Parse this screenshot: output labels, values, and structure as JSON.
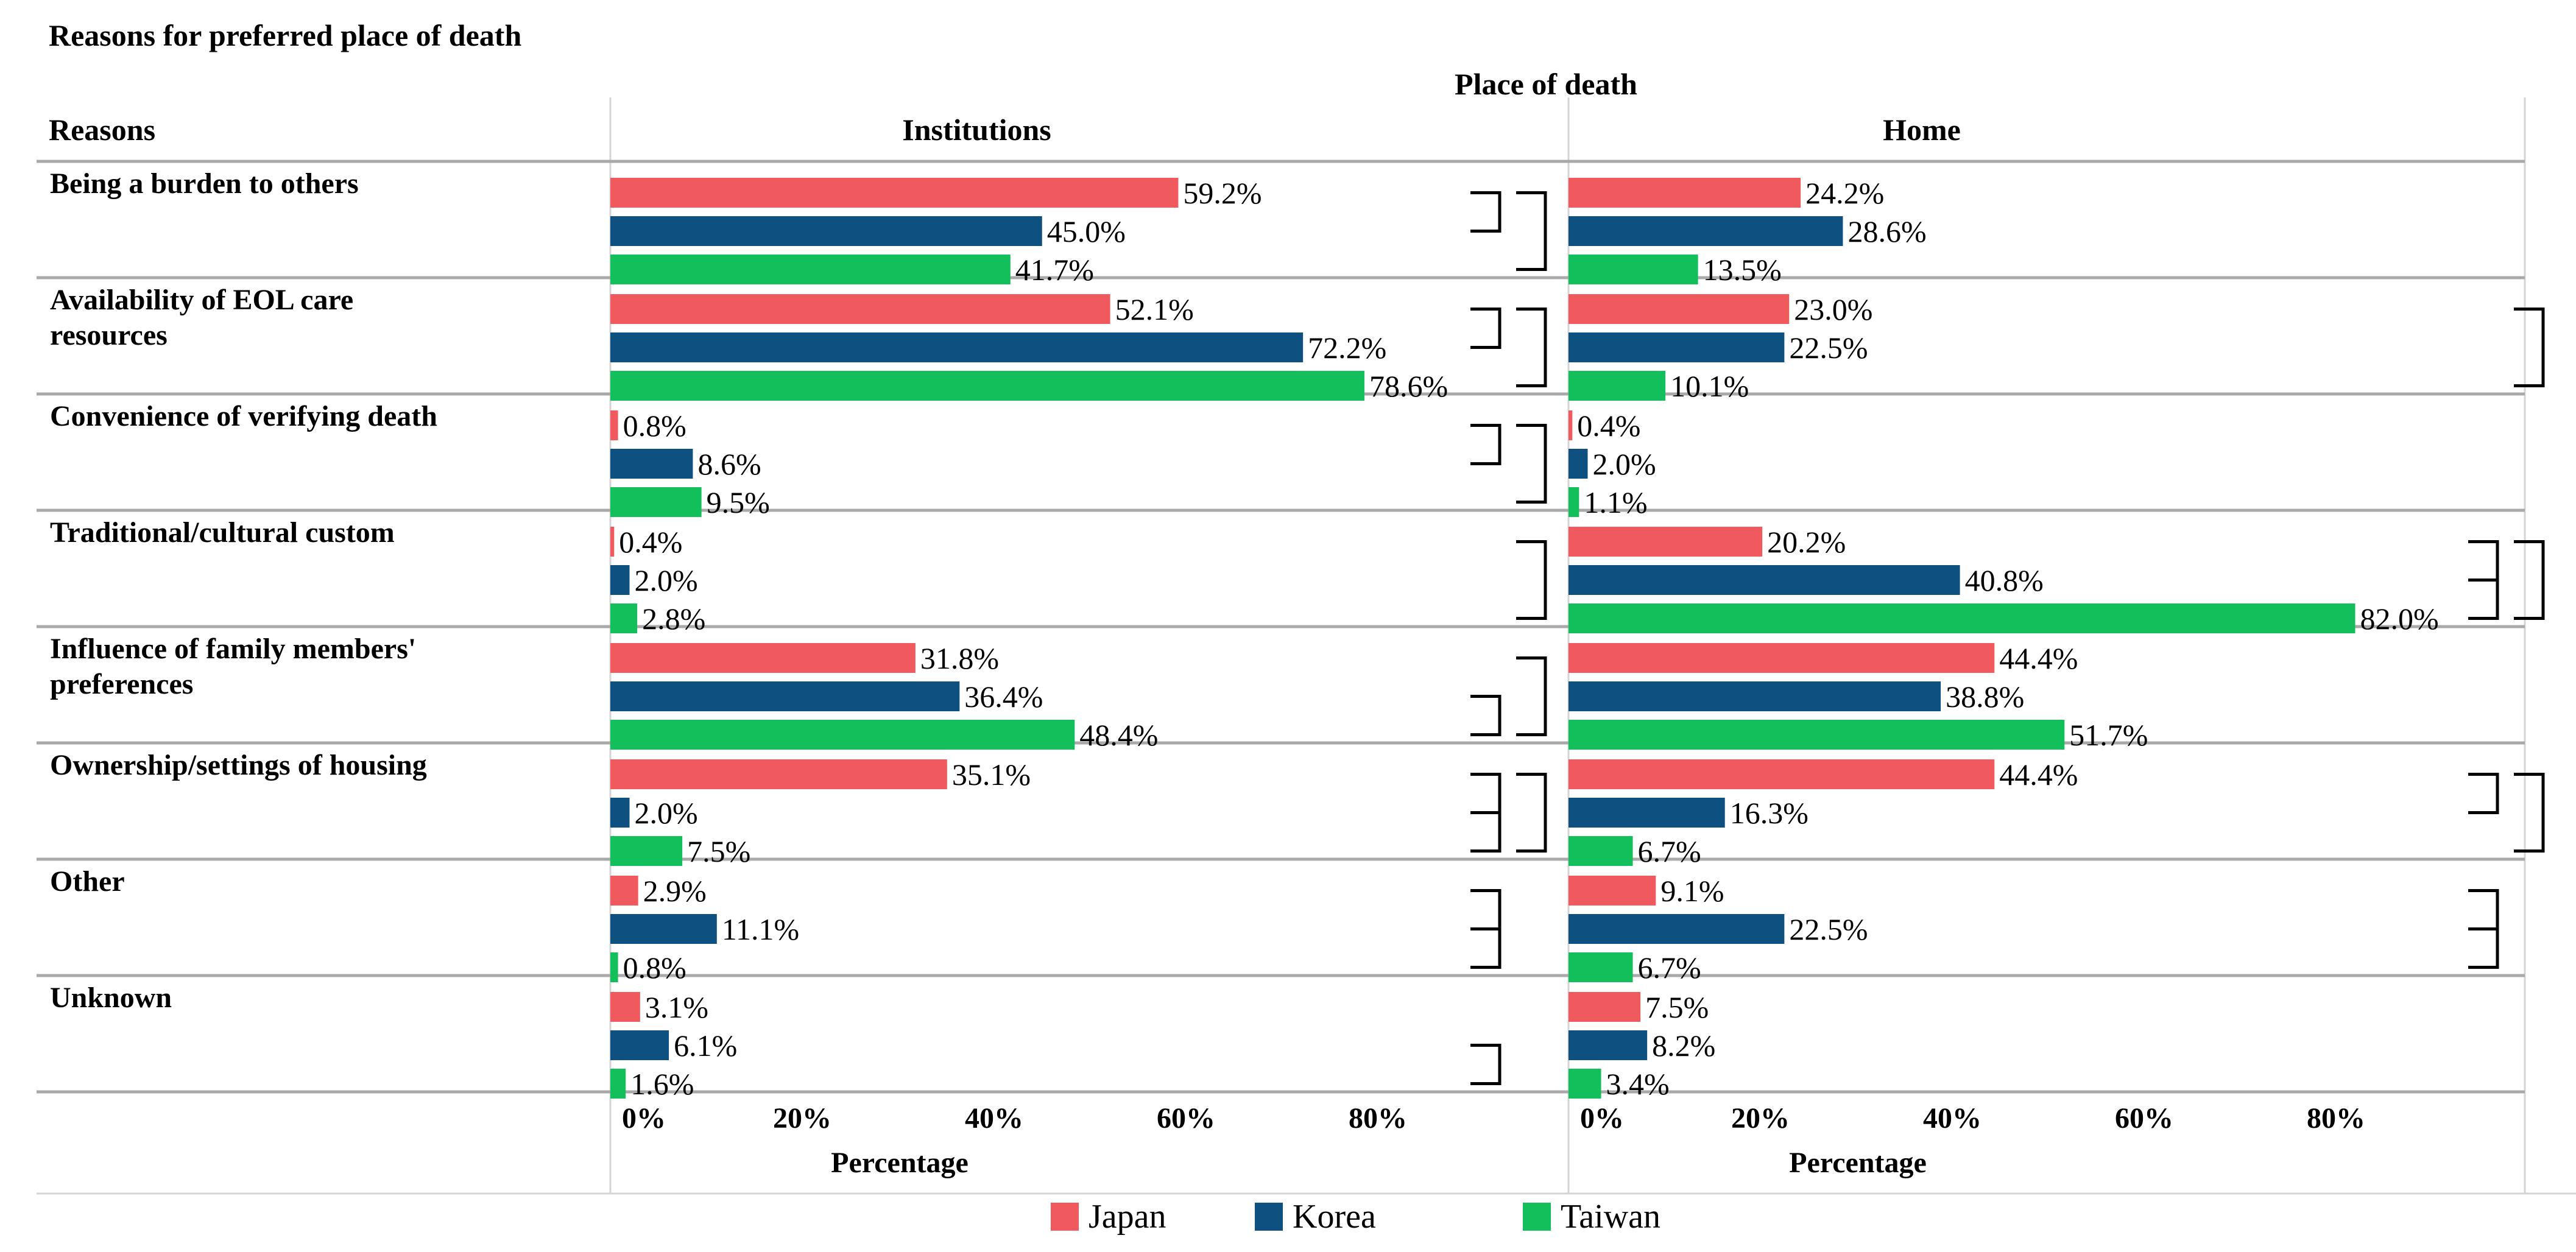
{
  "chart_data": {
    "type": "bar",
    "orientation": "horizontal",
    "title": "Reasons for preferred place of death",
    "column_group_label": "Place of death",
    "row_header": "Reasons",
    "xlabel": "Percentage",
    "xlim": [
      0,
      100
    ],
    "ticks": [
      "0%",
      "20%",
      "40%",
      "60%",
      "80%"
    ],
    "tick_values": [
      0,
      20,
      40,
      60,
      80
    ],
    "panels": [
      {
        "key": "institutions",
        "label": "Institutions"
      },
      {
        "key": "home",
        "label": "Home"
      }
    ],
    "series": [
      {
        "name": "Japan",
        "color": "#f05a5e"
      },
      {
        "name": "Korea",
        "color": "#0e5080"
      },
      {
        "name": "Taiwan",
        "color": "#13bf5a"
      }
    ],
    "categories": [
      {
        "label": [
          "Being a burden to others"
        ],
        "institutions": [
          59.2,
          45.0,
          41.7
        ],
        "home": [
          24.2,
          28.6,
          13.5
        ],
        "institutions_brackets": [
          [
            0,
            1
          ],
          [
            0,
            2
          ]
        ],
        "home_brackets": []
      },
      {
        "label": [
          "Availability of EOL care",
          "resources"
        ],
        "institutions": [
          52.1,
          72.2,
          78.6
        ],
        "home": [
          23.0,
          22.5,
          10.1
        ],
        "institutions_brackets": [
          [
            0,
            1
          ],
          [
            0,
            2
          ]
        ],
        "home_brackets": [
          [
            0,
            2
          ]
        ]
      },
      {
        "label": [
          "Convenience of verifying death"
        ],
        "institutions": [
          0.8,
          8.6,
          9.5
        ],
        "home": [
          0.4,
          2.0,
          1.1
        ],
        "institutions_brackets": [
          [
            0,
            1
          ],
          [
            0,
            2
          ]
        ],
        "home_brackets": []
      },
      {
        "label": [
          "Traditional/cultural custom"
        ],
        "institutions": [
          0.4,
          2.0,
          2.8
        ],
        "home": [
          20.2,
          40.8,
          82.0
        ],
        "institutions_brackets": [
          [
            0,
            2
          ]
        ],
        "home_brackets": [
          [
            0,
            1
          ],
          [
            1,
            2
          ],
          [
            0,
            2
          ]
        ]
      },
      {
        "label": [
          "Influence of family members'",
          "preferences"
        ],
        "institutions": [
          31.8,
          36.4,
          48.4
        ],
        "home": [
          44.4,
          38.8,
          51.7
        ],
        "institutions_brackets": [
          [
            1,
            2
          ],
          [
            0,
            2
          ]
        ],
        "home_brackets": []
      },
      {
        "label": [
          "Ownership/settings of housing"
        ],
        "institutions": [
          35.1,
          2.0,
          7.5
        ],
        "home": [
          44.4,
          16.3,
          6.7
        ],
        "institutions_brackets": [
          [
            0,
            1
          ],
          [
            1,
            2
          ],
          [
            0,
            2
          ]
        ],
        "home_brackets": [
          [
            0,
            1
          ],
          [
            0,
            2
          ]
        ]
      },
      {
        "label": [
          "Other"
        ],
        "institutions": [
          2.9,
          11.1,
          0.8
        ],
        "home": [
          9.1,
          22.5,
          6.7
        ],
        "institutions_brackets": [
          [
            0,
            1
          ],
          [
            1,
            2
          ]
        ],
        "home_brackets": [
          [
            0,
            1
          ],
          [
            1,
            2
          ]
        ]
      },
      {
        "label": [
          "Unknown"
        ],
        "institutions": [
          3.1,
          6.1,
          1.6
        ],
        "home": [
          7.5,
          8.2,
          3.4
        ],
        "institutions_brackets": [
          [
            1,
            2
          ]
        ],
        "home_brackets": []
      }
    ]
  }
}
